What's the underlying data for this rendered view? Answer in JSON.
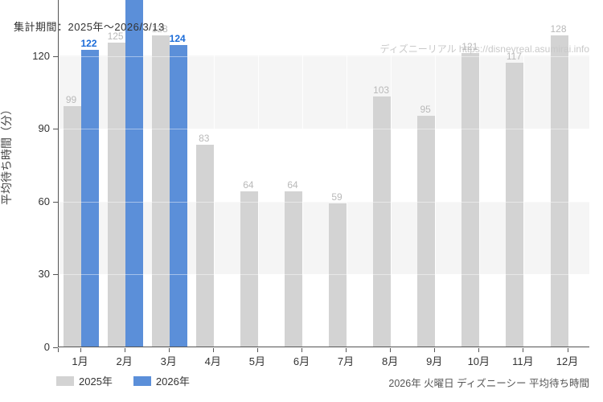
{
  "title": "集計期間：2025年～2026/3/13",
  "watermark": "ディズニーリアル https://disneyreal.asumirai.info",
  "footer": "2026年 火曜日 ディズニーシー 平均待ち時間",
  "legend": [
    {
      "label": "2025年",
      "color": "#d3d3d3"
    },
    {
      "label": "2026年",
      "color": "#5b8fd9"
    }
  ],
  "chart_data": {
    "type": "bar",
    "title": "集計期間：2025年～2026/3/13",
    "ylabel": "平均待ち時間（分）",
    "xlabel": "",
    "categories": [
      "1月",
      "2月",
      "3月",
      "4月",
      "5月",
      "6月",
      "7月",
      "8月",
      "9月",
      "10月",
      "11月",
      "12月"
    ],
    "yticks": [
      0,
      30,
      60,
      90,
      120
    ],
    "ylim": [
      0,
      143
    ],
    "grid": "alternating-horizontal-bands",
    "band_color": "#f5f5f5",
    "legend_position": "bottom-left",
    "series": [
      {
        "name": "2025年",
        "color": "#d3d3d3",
        "label_color": "#b9b9b9",
        "values": [
          99,
          125,
          128,
          83,
          64,
          64,
          59,
          103,
          95,
          121,
          117,
          128
        ]
      },
      {
        "name": "2026年",
        "color": "#5b8fd9",
        "label_color": "#1a6bd8",
        "values": [
          122,
          null,
          124,
          null,
          null,
          null,
          null,
          null,
          null,
          null,
          null,
          null
        ],
        "clipped_above_top": [
          false,
          true,
          false,
          false,
          false,
          false,
          false,
          false,
          false,
          false,
          false,
          false
        ]
      }
    ],
    "notes": "2026年2月 bar is clipped at the top edge of the image; its value label is not visible."
  }
}
